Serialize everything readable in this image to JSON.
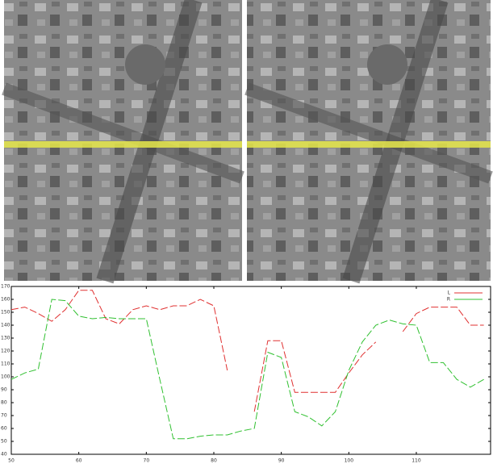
{
  "chart_data": {
    "type": "line",
    "x": [
      50,
      52,
      54,
      56,
      58,
      60,
      62,
      64,
      66,
      68,
      70,
      72,
      74,
      76,
      78,
      80,
      82,
      84,
      86,
      88,
      90,
      92,
      94,
      96,
      98,
      100,
      102,
      104,
      106,
      108,
      110,
      112,
      114,
      116,
      118,
      120
    ],
    "series": [
      {
        "name": "L",
        "color": "#e03030",
        "values": [
          152,
          154,
          149,
          143,
          152,
          167,
          167,
          145,
          141,
          152,
          155,
          152,
          155,
          155,
          160,
          155,
          105,
          null,
          73,
          128,
          128,
          88,
          88,
          88,
          88,
          103,
          117,
          127,
          null,
          135,
          149,
          154,
          154,
          154,
          140,
          140
        ]
      },
      {
        "name": "R",
        "color": "#30c030",
        "values": [
          98,
          103,
          106,
          160,
          159,
          147,
          145,
          146,
          145,
          145,
          145,
          98,
          52,
          52,
          54,
          55,
          55,
          58,
          60,
          119,
          115,
          73,
          69,
          62,
          73,
          105,
          127,
          140,
          144,
          141,
          140,
          111,
          111,
          98,
          92,
          98
        ]
      }
    ],
    "xlim": [
      50,
      121
    ],
    "xticks": [
      50,
      60,
      70,
      80,
      90,
      100,
      110
    ],
    "ylim": [
      40,
      170
    ],
    "yticks": [
      40,
      50,
      60,
      70,
      80,
      90,
      100,
      110,
      120,
      130,
      140,
      150,
      160,
      170
    ],
    "legend": "upper-right"
  }
}
